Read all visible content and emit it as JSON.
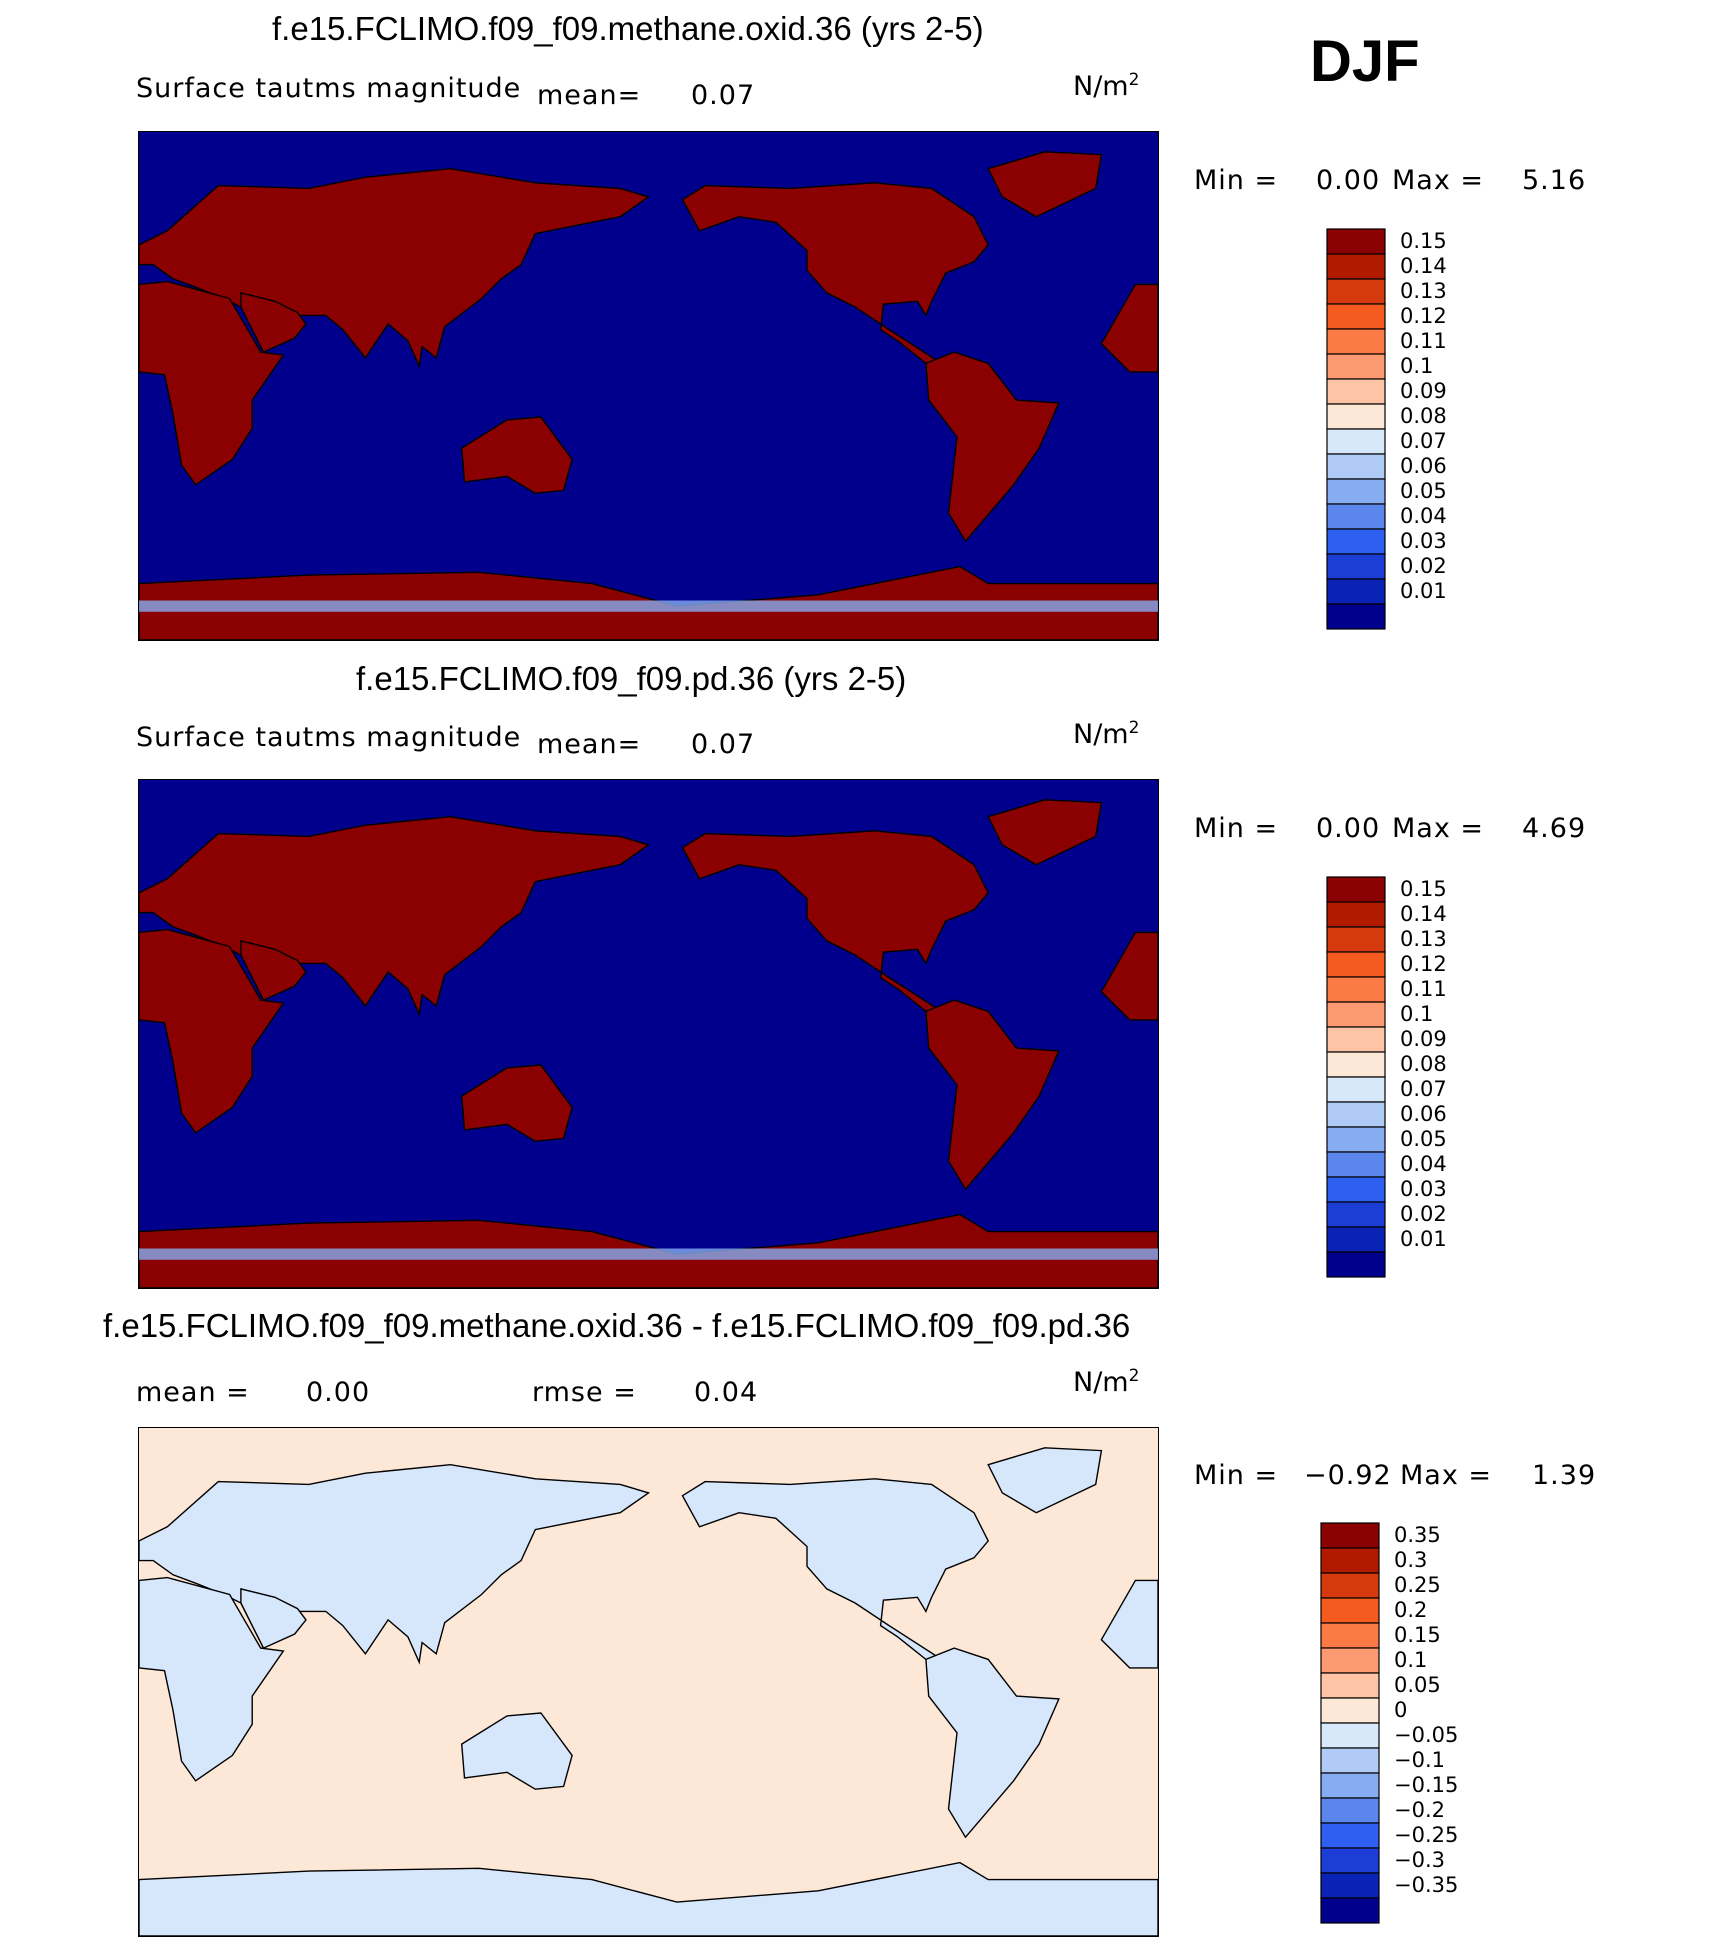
{
  "season": "DJF",
  "panels": [
    {
      "id": "case",
      "title": "f.e15.FCLIMO.f09_f09.methane.oxid.36 (yrs 2-5)",
      "variable": "Surface tautms magnitude",
      "stat_label": "mean=",
      "stat_value": "0.07",
      "units_base": "N/m",
      "units_exp": "2",
      "min_label": "Min =",
      "min_value": "0.00",
      "max_label": "Max =",
      "max_value": "5.16",
      "ocean_color": "#00008c",
      "land_color": "#8b0000"
    },
    {
      "id": "control",
      "title": "f.e15.FCLIMO.f09_f09.pd.36 (yrs 2-5)",
      "variable": "Surface tautms magnitude",
      "stat_label": "mean=",
      "stat_value": "0.07",
      "units_base": "N/m",
      "units_exp": "2",
      "min_label": "Min =",
      "min_value": "0.00",
      "max_label": "Max =",
      "max_value": "4.69",
      "ocean_color": "#00008c",
      "land_color": "#8b0000"
    },
    {
      "id": "difference",
      "title": "f.e15.FCLIMO.f09_f09.methane.oxid.36 - f.e15.FCLIMO.f09_f09.pd.36",
      "mean_label": "mean =",
      "mean_value": "0.00",
      "rmse_label": "rmse =",
      "rmse_value": "0.04",
      "units_base": "N/m",
      "units_exp": "2",
      "min_label": "Min =",
      "min_value": "−0.92",
      "max_label": "Max =",
      "max_value": "1.39",
      "ocean_color": "#fde7d6",
      "land_color": "#d6e6fb"
    }
  ],
  "chart_data": [
    {
      "type": "heatmap",
      "title": "f.e15.FCLIMO.f09_f09.methane.oxid.36 (yrs 2-5)",
      "variable": "Surface tautms magnitude",
      "units": "N/m2",
      "mean": 0.07,
      "min": 0.0,
      "max": 5.16,
      "colorbar": {
        "labels": [
          "0.15",
          "0.14",
          "0.13",
          "0.12",
          "0.11",
          "0.1",
          "0.09",
          "0.08",
          "0.07",
          "0.06",
          "0.05",
          "0.04",
          "0.03",
          "0.02",
          "0.01"
        ],
        "colors": [
          "#8b0000",
          "#b21a00",
          "#d43a0e",
          "#f55a1f",
          "#fb7a45",
          "#fc9a72",
          "#fdc4a6",
          "#fde7d6",
          "#d7e8fb",
          "#b0ccf6",
          "#86acf1",
          "#5b87ec",
          "#2f5ff0",
          "#1d3ed6",
          "#0a22b6",
          "#00008c"
        ]
      }
    },
    {
      "type": "heatmap",
      "title": "f.e15.FCLIMO.f09_f09.pd.36 (yrs 2-5)",
      "variable": "Surface tautms magnitude",
      "units": "N/m2",
      "mean": 0.07,
      "min": 0.0,
      "max": 4.69,
      "colorbar": {
        "labels": [
          "0.15",
          "0.14",
          "0.13",
          "0.12",
          "0.11",
          "0.1",
          "0.09",
          "0.08",
          "0.07",
          "0.06",
          "0.05",
          "0.04",
          "0.03",
          "0.02",
          "0.01"
        ],
        "colors": [
          "#8b0000",
          "#b21a00",
          "#d43a0e",
          "#f55a1f",
          "#fb7a45",
          "#fc9a72",
          "#fdc4a6",
          "#fde7d6",
          "#d7e8fb",
          "#b0ccf6",
          "#86acf1",
          "#5b87ec",
          "#2f5ff0",
          "#1d3ed6",
          "#0a22b6",
          "#00008c"
        ]
      }
    },
    {
      "type": "heatmap",
      "title": "f.e15.FCLIMO.f09_f09.methane.oxid.36 - f.e15.FCLIMO.f09_f09.pd.36",
      "units": "N/m2",
      "mean": 0.0,
      "rmse": 0.04,
      "min": -0.92,
      "max": 1.39,
      "colorbar": {
        "labels": [
          "0.35",
          "0.3",
          "0.25",
          "0.2",
          "0.15",
          "0.1",
          "0.05",
          "0",
          "−0.05",
          "−0.1",
          "−0.15",
          "−0.2",
          "−0.25",
          "−0.3",
          "−0.35"
        ],
        "colors": [
          "#8b0000",
          "#b21a00",
          "#d43a0e",
          "#f55a1f",
          "#fb7a45",
          "#fc9a72",
          "#fdc4a6",
          "#fde7d6",
          "#d7e8fb",
          "#b0ccf6",
          "#86acf1",
          "#5b87ec",
          "#2f5ff0",
          "#1d3ed6",
          "#0a22b6",
          "#00008c"
        ]
      }
    }
  ]
}
